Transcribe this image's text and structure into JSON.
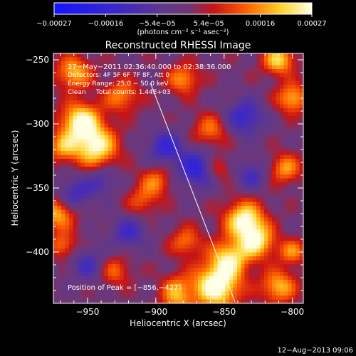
{
  "chart_data": {
    "type": "heatmap",
    "title": "Reconstructed RHESSI Image",
    "xlabel": "Heliocentric X (arcsec)",
    "ylabel": "Heliocentric Y (arcsec)",
    "xlim": [
      -975,
      -792
    ],
    "ylim": [
      -440,
      -245
    ],
    "xticks": [
      -950,
      -900,
      -850,
      -800
    ],
    "xtick_labels": [
      "−950",
      "−900",
      "−850",
      "−800"
    ],
    "yticks": [
      -250,
      -300,
      -350,
      -400
    ],
    "ytick_labels": [
      "−250",
      "−300",
      "−350",
      "−400"
    ],
    "colorbar": {
      "range": [
        -0.00027,
        0.00027
      ],
      "unit_label": "(photons cm⁻² s⁻¹ asec⁻²)",
      "tick_labels": [
        "−0.00027",
        "−0.00016",
        "−5.4e−05",
        "5.4e−05",
        "0.00016",
        "0.00027"
      ]
    },
    "info_lines": [
      "27−May−2011 02:36:40.000 to 02:38:36.000",
      "Detectors: 4F 5F 6F 7F 8F, Att 0",
      "Energy Range: 25.0 − 50.0 keV",
      "Clean     Total counts: 1.44E+03"
    ],
    "peak_label": "Position of Peak = [−856,−427]",
    "peak": [
      -856,
      -427
    ],
    "sources": [
      {
        "x": -955,
        "y": -298,
        "amplitude": 1.0,
        "sigma": 10
      },
      {
        "x": -944,
        "y": -318,
        "amplitude": 0.95,
        "sigma": 11
      },
      {
        "x": -960,
        "y": -260,
        "amplitude": 0.7,
        "sigma": 9
      },
      {
        "x": -925,
        "y": -278,
        "amplitude": 0.55,
        "sigma": 9
      },
      {
        "x": -968,
        "y": -318,
        "amplitude": 0.6,
        "sigma": 8
      },
      {
        "x": -972,
        "y": -370,
        "amplitude": 0.7,
        "sigma": 9
      },
      {
        "x": -968,
        "y": -395,
        "amplitude": 0.5,
        "sigma": 7
      },
      {
        "x": -900,
        "y": -345,
        "amplitude": 0.5,
        "sigma": 8
      },
      {
        "x": -910,
        "y": -360,
        "amplitude": 0.4,
        "sigma": 8
      },
      {
        "x": -856,
        "y": -427,
        "amplitude": 1.1,
        "sigma": 12
      },
      {
        "x": -846,
        "y": -405,
        "amplitude": 0.8,
        "sigma": 10
      },
      {
        "x": -835,
        "y": -375,
        "amplitude": 1.0,
        "sigma": 10
      },
      {
        "x": -826,
        "y": -392,
        "amplitude": 0.85,
        "sigma": 9
      },
      {
        "x": -810,
        "y": -427,
        "amplitude": 0.7,
        "sigma": 9
      },
      {
        "x": -800,
        "y": -400,
        "amplitude": 0.55,
        "sigma": 7
      },
      {
        "x": -878,
        "y": -392,
        "amplitude": 0.5,
        "sigma": 8
      },
      {
        "x": -810,
        "y": -250,
        "amplitude": 0.8,
        "sigma": 8
      },
      {
        "x": -800,
        "y": -280,
        "amplitude": 0.7,
        "sigma": 8
      },
      {
        "x": -805,
        "y": -335,
        "amplitude": 0.6,
        "sigma": 8
      },
      {
        "x": -860,
        "y": -305,
        "amplitude": 0.5,
        "sigma": 9
      },
      {
        "x": -880,
        "y": -265,
        "amplitude": 0.6,
        "sigma": 8
      },
      {
        "x": -930,
        "y": -415,
        "amplitude": 0.45,
        "sigma": 8
      },
      {
        "x": -885,
        "y": -428,
        "amplitude": 0.45,
        "sigma": 8
      },
      {
        "x": -885,
        "y": -440,
        "amplitude": 0.4,
        "sigma": 8
      },
      {
        "x": -855,
        "y": -335,
        "amplitude": 0.4,
        "sigma": 7
      },
      {
        "x": -870,
        "y": -335,
        "amplitude": -0.7,
        "sigma": 10
      },
      {
        "x": -893,
        "y": -318,
        "amplitude": -0.6,
        "sigma": 9
      },
      {
        "x": -835,
        "y": -295,
        "amplitude": -0.6,
        "sigma": 10
      },
      {
        "x": -960,
        "y": -355,
        "amplitude": -0.5,
        "sigma": 9
      },
      {
        "x": -920,
        "y": -385,
        "amplitude": -0.5,
        "sigma": 9
      },
      {
        "x": -950,
        "y": -410,
        "amplitude": -0.45,
        "sigma": 9
      },
      {
        "x": -830,
        "y": -340,
        "amplitude": -0.45,
        "sigma": 8
      },
      {
        "x": -940,
        "y": -345,
        "amplitude": -0.4,
        "sigma": 8
      }
    ]
  },
  "footer": {
    "timestamp": "12−Aug−2013 09:06"
  }
}
